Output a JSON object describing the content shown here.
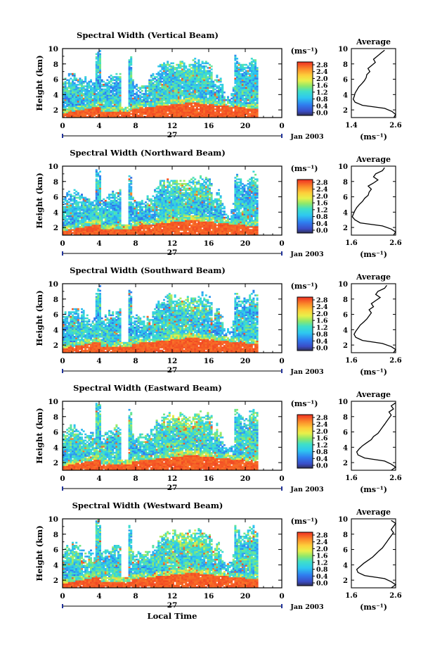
{
  "figure": {
    "xaxis_title": "Local Time",
    "date_label": "Jan 2003",
    "day_label": "27"
  },
  "colorbar": {
    "unit": "(ms⁻¹)",
    "ticks": [
      "2.8",
      "2.4",
      "2.0",
      "1.6",
      "1.2",
      "0.8",
      "0.4",
      "0.0"
    ]
  },
  "chart_data": [
    {
      "type": "heatmap",
      "title": "Spectral Width (Vertical Beam)",
      "ylabel": "Height (km)",
      "x_ticks": [
        "0",
        "4",
        "8",
        "12",
        "16",
        "20",
        "0"
      ],
      "y_ticks": [
        "2",
        "4",
        "6",
        "8",
        "10"
      ],
      "xlim": [
        0,
        24
      ],
      "ylim": [
        1,
        10
      ],
      "zlim": [
        0.0,
        3.0
      ],
      "data_end_hour": 21.2,
      "profile": {
        "title": "Average",
        "xlabel": "(ms⁻¹)",
        "x_ticks": [
          "1.4",
          "2.6"
        ],
        "xlim": [
          1.4,
          2.6
        ],
        "y_ticks": [
          "2",
          "4",
          "6",
          "8",
          "10"
        ],
        "points": [
          [
            2.55,
            1.0
          ],
          [
            2.6,
            1.4
          ],
          [
            2.5,
            1.8
          ],
          [
            2.3,
            2.2
          ],
          [
            1.7,
            2.6
          ],
          [
            1.5,
            3.0
          ],
          [
            1.45,
            3.4
          ],
          [
            1.48,
            3.8
          ],
          [
            1.5,
            4.2
          ],
          [
            1.55,
            4.6
          ],
          [
            1.6,
            5.0
          ],
          [
            1.68,
            5.4
          ],
          [
            1.75,
            5.8
          ],
          [
            1.8,
            6.2
          ],
          [
            1.82,
            6.6
          ],
          [
            1.9,
            7.0
          ],
          [
            1.85,
            7.4
          ],
          [
            1.95,
            7.8
          ],
          [
            2.05,
            8.2
          ],
          [
            2.0,
            8.6
          ],
          [
            2.1,
            9.0
          ],
          [
            2.2,
            9.4
          ],
          [
            2.3,
            9.8
          ]
        ]
      }
    },
    {
      "type": "heatmap",
      "title": "Spectral Width (Northward Beam)",
      "ylabel": "Height (km)",
      "x_ticks": [
        "0",
        "4",
        "8",
        "12",
        "16",
        "20",
        "0"
      ],
      "y_ticks": [
        "2",
        "4",
        "6",
        "8",
        "10"
      ],
      "xlim": [
        0,
        24
      ],
      "ylim": [
        1,
        10
      ],
      "zlim": [
        0.0,
        3.0
      ],
      "data_end_hour": 21.2,
      "profile": {
        "title": "Average",
        "xlabel": "(ms⁻¹)",
        "x_ticks": [
          "1.6",
          "2.6"
        ],
        "xlim": [
          1.6,
          2.6
        ],
        "y_ticks": [
          "2",
          "4",
          "6",
          "8",
          "10"
        ],
        "points": [
          [
            2.55,
            1.0
          ],
          [
            2.6,
            1.4
          ],
          [
            2.5,
            1.8
          ],
          [
            2.3,
            2.2
          ],
          [
            1.8,
            2.6
          ],
          [
            1.68,
            3.0
          ],
          [
            1.62,
            3.4
          ],
          [
            1.65,
            3.8
          ],
          [
            1.68,
            4.2
          ],
          [
            1.72,
            4.6
          ],
          [
            1.78,
            5.0
          ],
          [
            1.85,
            5.4
          ],
          [
            1.9,
            5.8
          ],
          [
            1.98,
            6.2
          ],
          [
            2.0,
            6.6
          ],
          [
            2.05,
            7.0
          ],
          [
            1.98,
            7.4
          ],
          [
            2.1,
            7.8
          ],
          [
            2.2,
            8.2
          ],
          [
            2.1,
            8.6
          ],
          [
            2.15,
            9.0
          ],
          [
            2.3,
            9.4
          ],
          [
            2.35,
            9.8
          ]
        ]
      }
    },
    {
      "type": "heatmap",
      "title": "Spectral Width (Southward Beam)",
      "ylabel": "Height (km)",
      "x_ticks": [
        "0",
        "4",
        "8",
        "12",
        "16",
        "20",
        "0"
      ],
      "y_ticks": [
        "2",
        "4",
        "6",
        "8",
        "10"
      ],
      "xlim": [
        0,
        24
      ],
      "ylim": [
        1,
        10
      ],
      "zlim": [
        0.0,
        3.0
      ],
      "data_end_hour": 21.2,
      "profile": {
        "title": "Average",
        "xlabel": "(ms⁻¹)",
        "x_ticks": [
          "1.6",
          "2.6"
        ],
        "xlim": [
          1.6,
          2.6
        ],
        "y_ticks": [
          "2",
          "4",
          "6",
          "8",
          "10"
        ],
        "points": [
          [
            2.55,
            1.0
          ],
          [
            2.6,
            1.4
          ],
          [
            2.5,
            1.8
          ],
          [
            2.3,
            2.2
          ],
          [
            1.85,
            2.6
          ],
          [
            1.7,
            3.0
          ],
          [
            1.66,
            3.4
          ],
          [
            1.7,
            3.8
          ],
          [
            1.75,
            4.2
          ],
          [
            1.8,
            4.6
          ],
          [
            1.88,
            5.0
          ],
          [
            1.95,
            5.4
          ],
          [
            2.0,
            5.8
          ],
          [
            2.05,
            6.2
          ],
          [
            2.0,
            6.6
          ],
          [
            2.1,
            7.0
          ],
          [
            2.05,
            7.4
          ],
          [
            2.15,
            7.8
          ],
          [
            2.25,
            8.2
          ],
          [
            2.15,
            8.6
          ],
          [
            2.2,
            9.0
          ],
          [
            2.35,
            9.4
          ],
          [
            2.4,
            9.8
          ]
        ]
      }
    },
    {
      "type": "heatmap",
      "title": "Spectral Width (Eastward Beam)",
      "ylabel": "Height (km)",
      "x_ticks": [
        "0",
        "4",
        "8",
        "12",
        "16",
        "20",
        "0"
      ],
      "y_ticks": [
        "2",
        "4",
        "6",
        "8",
        "10"
      ],
      "xlim": [
        0,
        24
      ],
      "ylim": [
        1,
        10
      ],
      "zlim": [
        0.0,
        3.0
      ],
      "data_end_hour": 21.2,
      "profile": {
        "title": "Average",
        "xlabel": "(ms⁻¹)",
        "x_ticks": [
          "1.6",
          "2.6"
        ],
        "xlim": [
          1.6,
          2.6
        ],
        "y_ticks": [
          "2",
          "4",
          "6",
          "8",
          "10"
        ],
        "points": [
          [
            2.5,
            1.0
          ],
          [
            2.6,
            1.4
          ],
          [
            2.5,
            1.8
          ],
          [
            2.35,
            2.2
          ],
          [
            1.9,
            2.6
          ],
          [
            1.75,
            3.0
          ],
          [
            1.72,
            3.4
          ],
          [
            1.78,
            3.8
          ],
          [
            1.85,
            4.2
          ],
          [
            1.95,
            4.6
          ],
          [
            2.05,
            5.0
          ],
          [
            2.1,
            5.4
          ],
          [
            2.2,
            5.8
          ],
          [
            2.25,
            6.2
          ],
          [
            2.3,
            6.6
          ],
          [
            2.35,
            7.0
          ],
          [
            2.4,
            7.4
          ],
          [
            2.45,
            7.8
          ],
          [
            2.5,
            8.2
          ],
          [
            2.45,
            8.6
          ],
          [
            2.55,
            9.0
          ],
          [
            2.5,
            9.4
          ],
          [
            2.6,
            9.8
          ]
        ]
      }
    },
    {
      "type": "heatmap",
      "title": "Spectral Width (Westward Beam)",
      "ylabel": "Height (km)",
      "x_ticks": [
        "0",
        "4",
        "8",
        "12",
        "16",
        "20",
        "0"
      ],
      "y_ticks": [
        "2",
        "4",
        "6",
        "8",
        "10"
      ],
      "xlim": [
        0,
        24
      ],
      "ylim": [
        1,
        10
      ],
      "zlim": [
        0.0,
        3.0
      ],
      "data_end_hour": 21.2,
      "profile": {
        "title": "Average",
        "xlabel": "(ms⁻¹)",
        "x_ticks": [
          "1.6",
          "2.6"
        ],
        "xlim": [
          1.6,
          2.6
        ],
        "y_ticks": [
          "2",
          "4",
          "6",
          "8",
          "10"
        ],
        "points": [
          [
            2.5,
            1.0
          ],
          [
            2.6,
            1.4
          ],
          [
            2.5,
            1.8
          ],
          [
            2.35,
            2.2
          ],
          [
            1.9,
            2.6
          ],
          [
            1.75,
            3.0
          ],
          [
            1.72,
            3.4
          ],
          [
            1.8,
            3.8
          ],
          [
            1.88,
            4.2
          ],
          [
            1.98,
            4.6
          ],
          [
            2.08,
            5.0
          ],
          [
            2.15,
            5.4
          ],
          [
            2.22,
            5.8
          ],
          [
            2.3,
            6.2
          ],
          [
            2.35,
            6.6
          ],
          [
            2.4,
            7.0
          ],
          [
            2.45,
            7.4
          ],
          [
            2.5,
            7.8
          ],
          [
            2.55,
            8.2
          ],
          [
            2.5,
            8.6
          ],
          [
            2.55,
            9.0
          ],
          [
            2.6,
            9.4
          ],
          [
            2.5,
            9.8
          ]
        ]
      }
    }
  ]
}
